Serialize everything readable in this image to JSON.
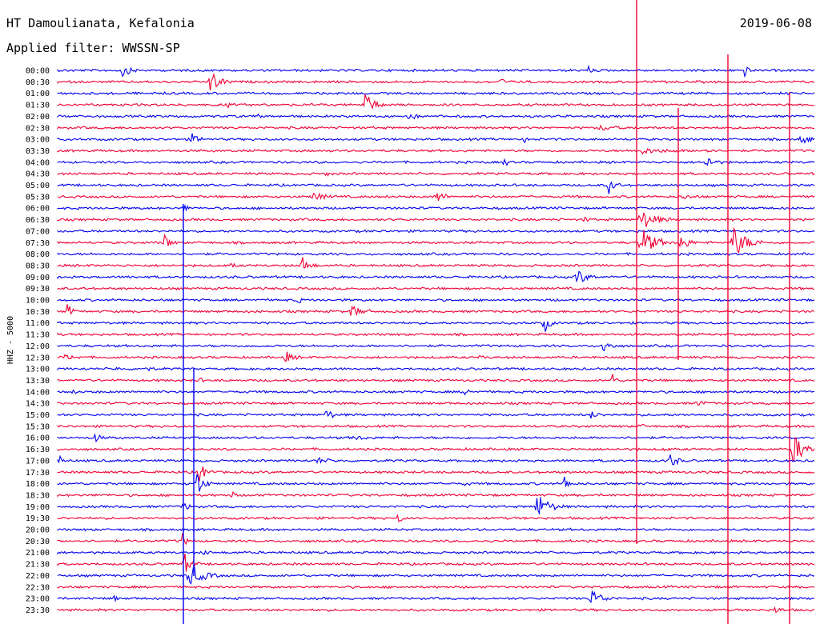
{
  "header": {
    "station": "HT Damoulianata, Kefalonia",
    "filter": "Applied filter: WWSSN-SP",
    "date": "2019-06-08"
  },
  "chart_data": {
    "type": "line",
    "title": "HT Damoulianata, Kefalonia",
    "subtitle": "Applied filter: WWSSN-SP",
    "ylabel": "HHZ - 5000",
    "row_labels": [
      "00:00",
      "00:30",
      "01:00",
      "01:30",
      "02:00",
      "02:30",
      "03:00",
      "03:30",
      "04:00",
      "04:30",
      "05:00",
      "05:30",
      "06:00",
      "06:30",
      "07:00",
      "07:30",
      "08:00",
      "08:30",
      "09:00",
      "09:30",
      "10:00",
      "10:30",
      "11:00",
      "11:30",
      "12:00",
      "12:30",
      "13:00",
      "13:30",
      "14:00",
      "14:30",
      "15:00",
      "15:30",
      "16:00",
      "16:30",
      "17:00",
      "17:30",
      "18:00",
      "18:30",
      "19:00",
      "19:30",
      "20:00",
      "20:30",
      "21:00",
      "21:30",
      "22:00",
      "22:30",
      "23:00",
      "23:30"
    ],
    "colors": {
      "even_rows": "#0000ee",
      "odd_rows": "#ee0033"
    },
    "grid": false
  }
}
